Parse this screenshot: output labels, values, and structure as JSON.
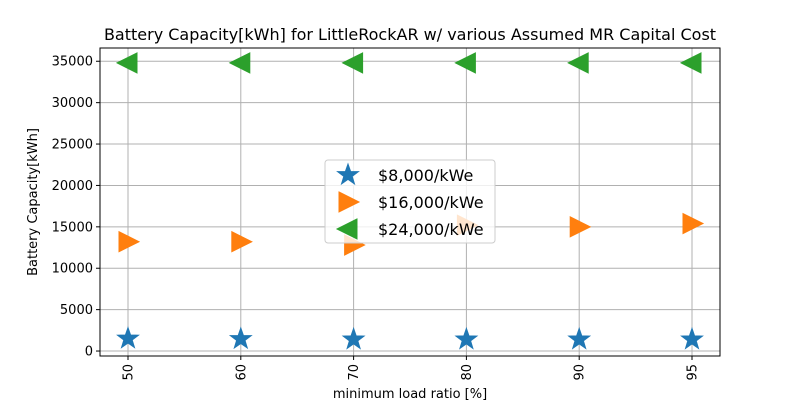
{
  "chart_data": {
    "type": "scatter",
    "title": "Battery Capacity[kWh] for LittleRockAR w/ various Assumed MR Capital Cost",
    "xlabel": "minimum load ratio [%]",
    "ylabel": "Battery Capacity[kWh]",
    "categories": [
      "50",
      "60",
      "70",
      "80",
      "90",
      "95"
    ],
    "yticks": [
      "0",
      "5000",
      "10000",
      "15000",
      "20000",
      "25000",
      "30000",
      "35000"
    ],
    "ylim": [
      -600,
      36600
    ],
    "grid": true,
    "legend_position": "center",
    "series": [
      {
        "name": "$8,000/kWe",
        "marker": "star",
        "color": "#1f77b4",
        "values": [
          1500,
          1450,
          1400,
          1400,
          1400,
          1400
        ]
      },
      {
        "name": "$16,000/kWe",
        "marker": "triangle-right",
        "color": "#ff7f0e",
        "values": [
          13200,
          13200,
          12800,
          15200,
          15000,
          15400
        ]
      },
      {
        "name": "$24,000/kWe",
        "marker": "triangle-left",
        "color": "#2ca02c",
        "values": [
          34800,
          34800,
          34800,
          34800,
          34800,
          34800
        ]
      }
    ]
  }
}
